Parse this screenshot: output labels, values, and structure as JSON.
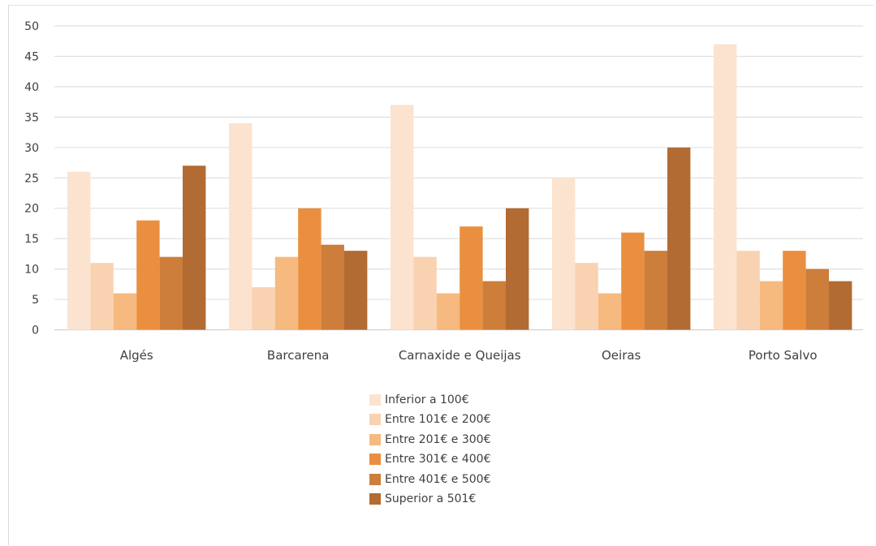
{
  "chart_data": {
    "type": "bar",
    "title": "",
    "xlabel": "",
    "ylabel": "",
    "ylim": [
      0,
      50
    ],
    "yticks": [
      0,
      5,
      10,
      15,
      20,
      25,
      30,
      35,
      40,
      45,
      50
    ],
    "grid": true,
    "legend_position": "bottom",
    "categories": [
      "Algés",
      "Barcarena",
      "Carnaxide e Queijas",
      "Oeiras",
      "Porto Salvo"
    ],
    "series": [
      {
        "name": "Inferior a 100€",
        "color": "#fbe3d0",
        "values": [
          26,
          34,
          37,
          25,
          47
        ]
      },
      {
        "name": "Entre 101€ e 200€",
        "color": "#f9d2b2",
        "values": [
          11,
          7,
          12,
          11,
          13
        ]
      },
      {
        "name": "Entre 201€ e 300€",
        "color": "#f6b97f",
        "values": [
          6,
          12,
          6,
          6,
          8
        ]
      },
      {
        "name": "Entre 301€ e 400€",
        "color": "#ea8f3f",
        "values": [
          18,
          20,
          17,
          16,
          13
        ]
      },
      {
        "name": "Entre 401€ e 500€",
        "color": "#cc7e3a",
        "values": [
          12,
          14,
          8,
          13,
          10
        ]
      },
      {
        "name": "Superior a 501€",
        "color": "#b26b32",
        "values": [
          27,
          13,
          20,
          30,
          8
        ]
      }
    ]
  }
}
